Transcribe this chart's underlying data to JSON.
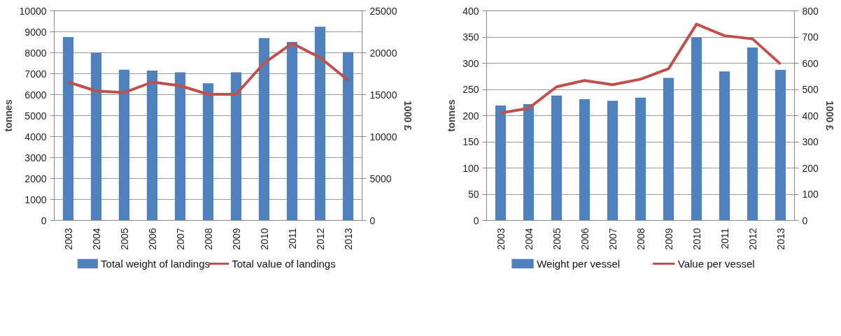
{
  "chart_data": [
    {
      "type": "bar",
      "ylabel": "tonnes",
      "y2label": "1000 £",
      "categories": [
        "2003",
        "2004",
        "2005",
        "2006",
        "2007",
        "2008",
        "2009",
        "2010",
        "2011",
        "2012",
        "2013"
      ],
      "series": [
        {
          "name": "Total weight of landings",
          "color": "#4f81bd",
          "values": [
            8750,
            8000,
            7190,
            7150,
            7070,
            6540,
            7070,
            8700,
            8520,
            9240,
            8030
          ]
        },
        {
          "name": "Total value of landings",
          "type": "line",
          "axis": "y2",
          "color": "#c0504d",
          "values": [
            16500,
            15440,
            15240,
            16500,
            16060,
            15040,
            15040,
            18770,
            21120,
            19420,
            16730
          ]
        }
      ],
      "ylim": [
        0,
        10000
      ],
      "yticks": [
        0,
        1000,
        2000,
        3000,
        4000,
        5000,
        6000,
        7000,
        8000,
        9000,
        10000
      ],
      "y2lim": [
        0,
        25000
      ],
      "y2ticks": [
        0,
        5000,
        10000,
        15000,
        20000,
        25000
      ],
      "grid": "y",
      "legend": "bottom"
    },
    {
      "type": "bar",
      "ylabel": "tonnes",
      "y2label": "1000 £",
      "categories": [
        "2003",
        "2004",
        "2005",
        "2006",
        "2007",
        "2008",
        "2009",
        "2010",
        "2011",
        "2012",
        "2013"
      ],
      "series": [
        {
          "name": "Weight per vessel",
          "color": "#4f81bd",
          "values": [
            219.5,
            222,
            238.5,
            231.5,
            228.5,
            234.5,
            272,
            349,
            284.5,
            330,
            287.5
          ]
        },
        {
          "name": "Value per vessel",
          "type": "line",
          "axis": "y2",
          "color": "#c0504d",
          "values": [
            410,
            428,
            510,
            534,
            518,
            539,
            579,
            749,
            705,
            693,
            597
          ]
        }
      ],
      "ylim": [
        0,
        400
      ],
      "yticks": [
        0,
        50,
        100,
        150,
        200,
        250,
        300,
        350,
        400
      ],
      "y2lim": [
        0,
        800
      ],
      "y2ticks": [
        0,
        100,
        200,
        300,
        400,
        500,
        600,
        700,
        800
      ],
      "grid": "y",
      "legend": "bottom"
    }
  ]
}
